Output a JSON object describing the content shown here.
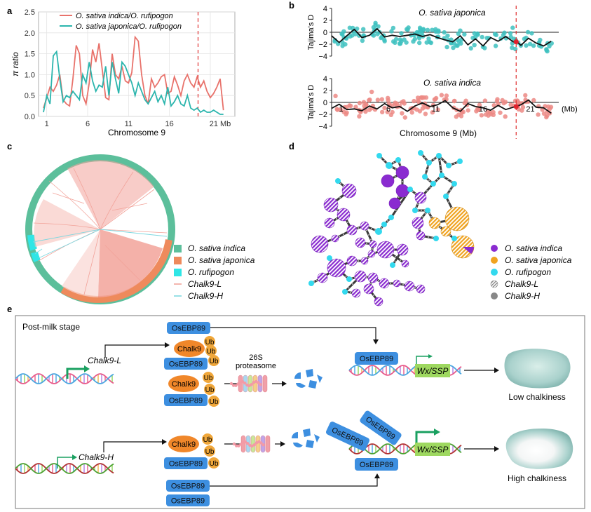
{
  "panels": {
    "a": "a",
    "b": "b",
    "c": "c",
    "d": "d",
    "e": "e"
  },
  "colors": {
    "indica": "#e8726b",
    "japonica_line": "#2bb5ad",
    "red_dash": "#e03030",
    "japonica_pts": "#3ec1bf",
    "indica_pts": "#ec8a85",
    "cir_green": "#5cbf9b",
    "cir_orange": "#ee8a5c",
    "cir_cyan": "#2fe6e6",
    "tree_pink": "#f2a39a",
    "tree_cyan": "#7fd8e0",
    "net_indica": "#8a2bd0",
    "net_japonica": "#f0a320",
    "net_rufipogon": "#33d9ee",
    "ub": "#f0a73a",
    "chalk9": "#f0872a",
    "osebp": "#3d8fe0",
    "wx": "#9ed860",
    "arrow_green": "#1aa060"
  },
  "chart_data": [
    {
      "panel": "a",
      "type": "line",
      "title": "",
      "xlabel": "Chromosome 9",
      "ylabel": "π ratio",
      "xlim": [
        0,
        24
      ],
      "ylim": [
        0,
        2.5
      ],
      "xticks": [
        1,
        6,
        11,
        16,
        21
      ],
      "xtick_labels": [
        "1",
        "6",
        "11",
        "16",
        "21 Mb"
      ],
      "yticks": [
        0,
        0.5,
        1.0,
        1.5,
        2.0,
        2.5
      ],
      "ytick_labels": [
        "0.0",
        "0.5",
        "1.0",
        "1.5",
        "2.0",
        "2.5"
      ],
      "vline": 19.5,
      "legend": [
        "O. sativa indica/O. rufipogon",
        "O. sativa japonica/O. rufipogon"
      ],
      "series": [
        {
          "name": "O. sativa indica/O. rufipogon",
          "x": [
            0.6,
            1.0,
            1.4,
            1.8,
            2.2,
            2.6,
            3.0,
            3.4,
            3.8,
            4.2,
            4.6,
            5.0,
            5.4,
            5.8,
            6.2,
            6.6,
            7.0,
            7.4,
            7.8,
            8.2,
            8.6,
            9.0,
            9.4,
            9.8,
            10.2,
            10.6,
            11.0,
            11.4,
            11.8,
            12.2,
            12.6,
            13.0,
            13.4,
            13.8,
            14.2,
            14.6,
            15.0,
            15.4,
            15.8,
            16.2,
            16.6,
            17.0,
            17.4,
            17.8,
            18.2,
            18.6,
            19.0,
            19.4,
            19.8,
            20.2,
            20.6,
            21.0,
            21.4,
            21.8,
            22.2,
            22.6
          ],
          "y": [
            0.2,
            0.45,
            0.7,
            0.6,
            0.75,
            1.0,
            0.4,
            0.3,
            0.25,
            0.9,
            1.7,
            1.5,
            0.5,
            0.3,
            0.8,
            1.6,
            1.3,
            1.75,
            1.1,
            0.45,
            0.4,
            1.5,
            1.0,
            0.9,
            1.2,
            0.85,
            0.8,
            1.05,
            1.9,
            1.8,
            1.0,
            0.5,
            0.3,
            0.9,
            0.7,
            0.8,
            0.95,
            1.0,
            0.55,
            0.6,
            0.95,
            0.75,
            0.5,
            0.85,
            1.0,
            0.8,
            0.7,
            0.95,
            0.7,
            0.85,
            0.6,
            0.45,
            0.55,
            0.7,
            0.9,
            0.15
          ]
        },
        {
          "name": "O. sativa japonica/O. rufipogon",
          "x": [
            0.6,
            1.0,
            1.4,
            1.8,
            2.2,
            2.6,
            3.0,
            3.4,
            3.8,
            4.2,
            4.6,
            5.0,
            5.4,
            5.8,
            6.2,
            6.6,
            7.0,
            7.4,
            7.8,
            8.2,
            8.6,
            9.0,
            9.4,
            9.8,
            10.2,
            10.6,
            11.0,
            11.4,
            11.8,
            12.2,
            12.6,
            13.0,
            13.4,
            13.8,
            14.2,
            14.6,
            15.0,
            15.4,
            15.8,
            16.2,
            16.6,
            17.0,
            17.4,
            17.8,
            18.2,
            18.6,
            19.0,
            19.4,
            19.8,
            20.2,
            20.6,
            21.0,
            21.4,
            21.8,
            22.2,
            22.6
          ],
          "y": [
            0.1,
            0.5,
            0.3,
            1.45,
            1.55,
            0.9,
            0.35,
            0.5,
            0.45,
            0.6,
            0.5,
            0.4,
            1.0,
            0.8,
            1.3,
            0.85,
            0.6,
            0.75,
            0.7,
            1.2,
            0.5,
            1.3,
            0.9,
            0.55,
            1.3,
            1.2,
            1.0,
            0.8,
            0.5,
            0.8,
            0.6,
            0.4,
            0.3,
            0.45,
            0.6,
            0.35,
            0.5,
            0.3,
            0.7,
            0.25,
            0.35,
            0.5,
            0.3,
            0.25,
            0.5,
            0.2,
            0.15,
            0.2,
            0.1,
            0.15,
            0.1,
            0.1,
            0.15,
            0.1,
            0.05,
            0.05
          ]
        }
      ]
    },
    {
      "panel": "b-top",
      "type": "scatter",
      "title": "O. sativa japonica",
      "ylabel": "Tajima's D",
      "xlim": [
        0,
        24
      ],
      "ylim": [
        -4,
        4
      ],
      "yticks": [
        4,
        2,
        0,
        -2,
        -4
      ],
      "vline": 19.5,
      "trend": {
        "x": [
          0,
          0.8,
          1.6,
          2.4,
          3.2,
          4.0,
          4.8,
          5.6,
          6.4,
          7.2,
          8.0,
          8.8,
          9.6,
          10.4,
          11.2,
          12.0,
          12.8,
          13.6,
          14.4,
          15.2,
          16.0,
          16.8,
          17.6,
          18.4,
          19.2,
          19.6,
          20.0,
          20.8,
          21.6,
          22.4,
          23.2
        ],
        "y": [
          -0.6,
          -1.7,
          -0.6,
          0.5,
          -0.9,
          -0.5,
          0.6,
          -0.8,
          -0.5,
          -0.7,
          -0.5,
          -0.3,
          -0.7,
          -0.4,
          -0.9,
          -1.3,
          -1.6,
          -0.6,
          -2.1,
          -1.1,
          -2.3,
          -0.9,
          -1.5,
          -0.7,
          -1.6,
          -1.6,
          -2.2,
          -1.0,
          -1.8,
          -2.3,
          -1.5
        ]
      },
      "highlight": {
        "x": 19.5,
        "y": -1.6
      }
    },
    {
      "panel": "b-bottom",
      "type": "scatter",
      "title": "O. sativa indica",
      "xlabel": "Chromosome 9  (Mb)",
      "ylabel": "Tajima's D",
      "xlim": [
        0,
        24
      ],
      "ylim": [
        -4,
        4
      ],
      "yticks": [
        4,
        2,
        0,
        -2,
        -4
      ],
      "xticks": [
        1,
        6,
        11,
        16,
        21
      ],
      "xtick_labels": [
        "1",
        "6",
        "11",
        "16",
        "21"
      ],
      "xunit": "(Mb)",
      "vline": 19.5,
      "trend": {
        "x": [
          0,
          0.8,
          1.6,
          2.4,
          3.2,
          4.0,
          4.8,
          5.6,
          6.4,
          7.2,
          8.0,
          8.8,
          9.6,
          10.4,
          11.2,
          12.0,
          12.8,
          13.6,
          14.4,
          15.2,
          16.0,
          16.8,
          17.6,
          18.4,
          19.2,
          19.6,
          20.0,
          20.8,
          21.6,
          22.4,
          23.2
        ],
        "y": [
          -1.0,
          -0.3,
          -1.2,
          -1.1,
          -1.4,
          -0.6,
          -1.1,
          -0.2,
          -0.9,
          -0.7,
          -1.5,
          -0.6,
          -0.1,
          -0.7,
          -0.4,
          0.3,
          -0.9,
          -1.5,
          -0.2,
          -0.7,
          -0.9,
          -1.3,
          -0.5,
          -1.2,
          -0.8,
          -0.6,
          -0.4,
          0.4,
          -0.8,
          -0.9,
          -1.8
        ]
      },
      "highlight": {
        "x": 19.5,
        "y": -0.7
      }
    }
  ],
  "panel_c": {
    "legend": [
      {
        "label": "O. sativa indica",
        "style": "box",
        "color": "#5cbf9b"
      },
      {
        "label": "O. sativa japonica",
        "style": "box",
        "color": "#ee8a5c"
      },
      {
        "label": "O. rufipogon",
        "style": "box",
        "color": "#2fe6e6"
      },
      {
        "label": "Chalk9-L",
        "style": "line",
        "color": "#f2a39a"
      },
      {
        "label": "Chalk9-H",
        "style": "line",
        "color": "#7fd8e0"
      }
    ]
  },
  "panel_d": {
    "legend": [
      {
        "label": "O. sativa indica",
        "style": "dot",
        "color": "#8a2bd0"
      },
      {
        "label": "O. sativa japonica",
        "style": "dot",
        "color": "#f0a320"
      },
      {
        "label": "O. rufipogon",
        "style": "dot",
        "color": "#33d9ee"
      },
      {
        "label": "Chalk9-L",
        "style": "hatch",
        "color": "#888888"
      },
      {
        "label": "Chalk9-H",
        "style": "solid",
        "color": "#888888"
      }
    ]
  },
  "panel_e": {
    "stage": "Post-milk stage",
    "chalk9": "Chalk9",
    "ub": "Ub",
    "osebp": "OsEBP89",
    "proteasome": [
      "26S",
      "proteasome"
    ],
    "gene_low": "Chalk9-L",
    "gene_high": "Chalk9-H",
    "target": "Wx/SSP",
    "low": "Low chalkiness",
    "high": "High chalkiness"
  }
}
